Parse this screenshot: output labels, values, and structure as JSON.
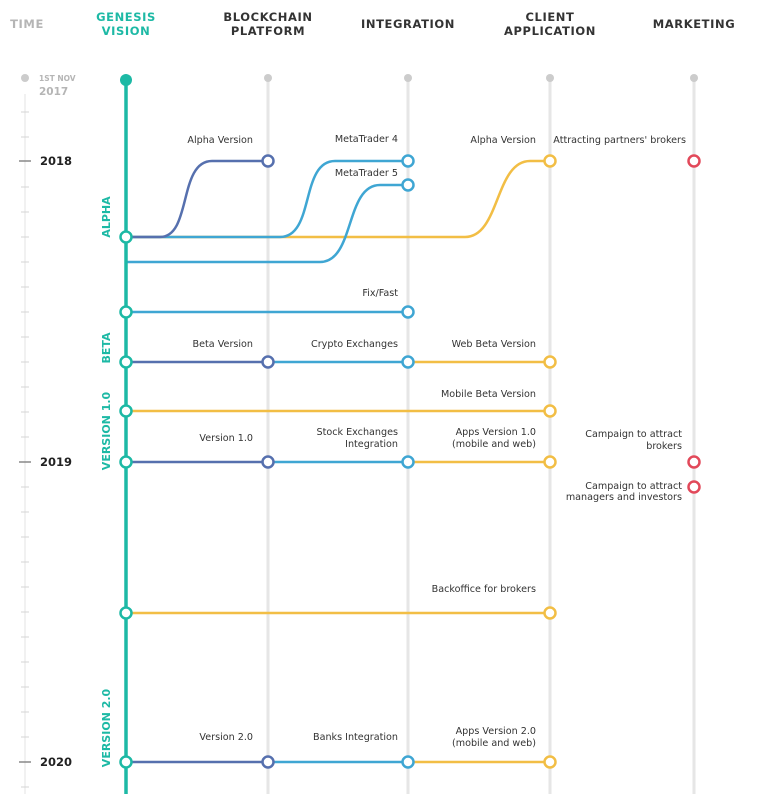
{
  "columns": {
    "time": "TIME",
    "genesis": [
      "GENESIS",
      "VISION"
    ],
    "blockchain": [
      "BLOCKCHAIN",
      "PLATFORM"
    ],
    "integration": "INTEGRATION",
    "client": [
      "CLIENT",
      "APPLICATION"
    ],
    "marketing": "MARKETING"
  },
  "start": {
    "date": "1ST NOV",
    "year": "2017"
  },
  "years": [
    "2018",
    "2019",
    "2020"
  ],
  "phases": [
    "ALPHA",
    "BETA",
    "VERSION 1.0",
    "VERSION 2.0"
  ],
  "labels": {
    "bp_alpha": "Alpha Version",
    "int_mt4": "MetaTrader 4",
    "int_mt5": "MetaTrader 5",
    "client_alpha": "Alpha Version",
    "mkt_partners": "Attracting partners' brokers",
    "int_fixfast": "Fix/Fast",
    "bp_beta": "Beta Version",
    "int_crypto": "Crypto Exchanges",
    "client_webbeta": "Web Beta Version",
    "client_mobilebeta": "Mobile Beta Version",
    "bp_v1": "Version 1.0",
    "int_stock": [
      "Stock Exchanges",
      "Integration"
    ],
    "client_apps1": [
      "Apps Version 1.0",
      "(mobile and web)"
    ],
    "mkt_brokers": [
      "Campaign to attract",
      "brokers"
    ],
    "mkt_managers": [
      "Campaign to attract",
      "managers and investors"
    ],
    "client_backoffice": "Backoffice for brokers",
    "bp_v2": "Version 2.0",
    "int_banks": "Banks Integration",
    "client_apps2": [
      "Apps Version 2.0",
      "(mobile and web)"
    ]
  },
  "colors": {
    "teal": "#1DB9A5",
    "blockchain": "#5670AE",
    "integration": "#3FA6D3",
    "client": "#F2BE45",
    "marketing": "#E2495A",
    "grey": "#CCCCCC",
    "header_grey": "#B5B5B5",
    "header_dark": "#333333"
  }
}
